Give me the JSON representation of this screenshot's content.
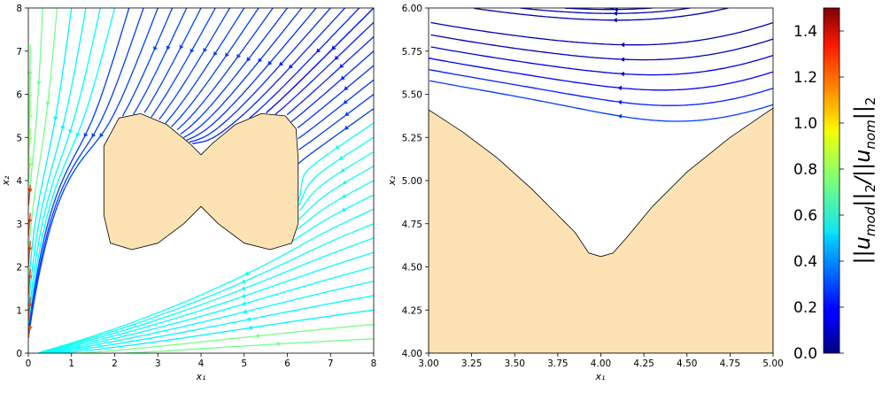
{
  "chart_data": [
    {
      "type": "streamplot",
      "title": "",
      "xlabel": "x₁",
      "ylabel": "x₂",
      "xlim": [
        0,
        8
      ],
      "ylim": [
        0,
        8
      ],
      "xticks": [
        "0",
        "1",
        "2",
        "3",
        "4",
        "5",
        "6",
        "7",
        "8"
      ],
      "yticks": [
        "0",
        "1",
        "2",
        "3",
        "4",
        "5",
        "6",
        "7",
        "8"
      ],
      "obstacle_color": "#fde3b3",
      "obstacle": {
        "top": [
          [
            1.75,
            4.8
          ],
          [
            2.1,
            5.45
          ],
          [
            2.6,
            5.55
          ],
          [
            3.2,
            5.3
          ],
          [
            3.75,
            4.85
          ],
          [
            4.0,
            4.6
          ],
          [
            4.25,
            4.85
          ],
          [
            4.8,
            5.3
          ],
          [
            5.4,
            5.55
          ],
          [
            5.95,
            5.5
          ],
          [
            6.2,
            5.2
          ],
          [
            6.25,
            4.5
          ]
        ],
        "bottom": [
          [
            6.25,
            3.0
          ],
          [
            6.1,
            2.55
          ],
          [
            5.6,
            2.4
          ],
          [
            5.0,
            2.55
          ],
          [
            4.4,
            3.0
          ],
          [
            4.0,
            3.4
          ],
          [
            3.6,
            3.0
          ],
          [
            3.0,
            2.55
          ],
          [
            2.4,
            2.4
          ],
          [
            1.9,
            2.55
          ],
          [
            1.75,
            3.2
          ]
        ]
      }
    },
    {
      "type": "streamplot",
      "title": "",
      "xlabel": "x₁",
      "ylabel": "x₂",
      "xlim": [
        3.0,
        5.0
      ],
      "ylim": [
        4.0,
        6.0
      ],
      "xticks": [
        "3.00",
        "3.25",
        "3.50",
        "3.75",
        "4.00",
        "4.25",
        "4.50",
        "4.75",
        "5.00"
      ],
      "yticks": [
        "4.00",
        "4.25",
        "4.50",
        "4.75",
        "5.00",
        "5.25",
        "5.50",
        "5.75",
        "6.00"
      ],
      "obstacle_color": "#fde3b3",
      "obstacle_boundary": [
        [
          3.0,
          5.41
        ],
        [
          3.2,
          5.28
        ],
        [
          3.4,
          5.13
        ],
        [
          3.6,
          4.95
        ],
        [
          3.75,
          4.8
        ],
        [
          3.85,
          4.7
        ],
        [
          3.93,
          4.58
        ],
        [
          4.0,
          4.56
        ],
        [
          4.07,
          4.58
        ],
        [
          4.15,
          4.67
        ],
        [
          4.3,
          4.85
        ],
        [
          4.5,
          5.05
        ],
        [
          4.75,
          5.25
        ],
        [
          5.0,
          5.42
        ]
      ]
    }
  ],
  "colorbar": {
    "label": "||u_mod||₂/||u_nom||₂",
    "label_main": "||u",
    "label_sub1": "mod",
    "label_mid": "||",
    "label_sub2": "2",
    "label_div": "/||u",
    "label_sub3": "nom",
    "label_end": "||",
    "label_sub4": "2",
    "range": [
      0.0,
      1.5
    ],
    "ticks": [
      "0.0",
      "0.2",
      "0.4",
      "0.6",
      "0.8",
      "1.0",
      "1.2",
      "1.4"
    ],
    "colormap": "jet"
  }
}
